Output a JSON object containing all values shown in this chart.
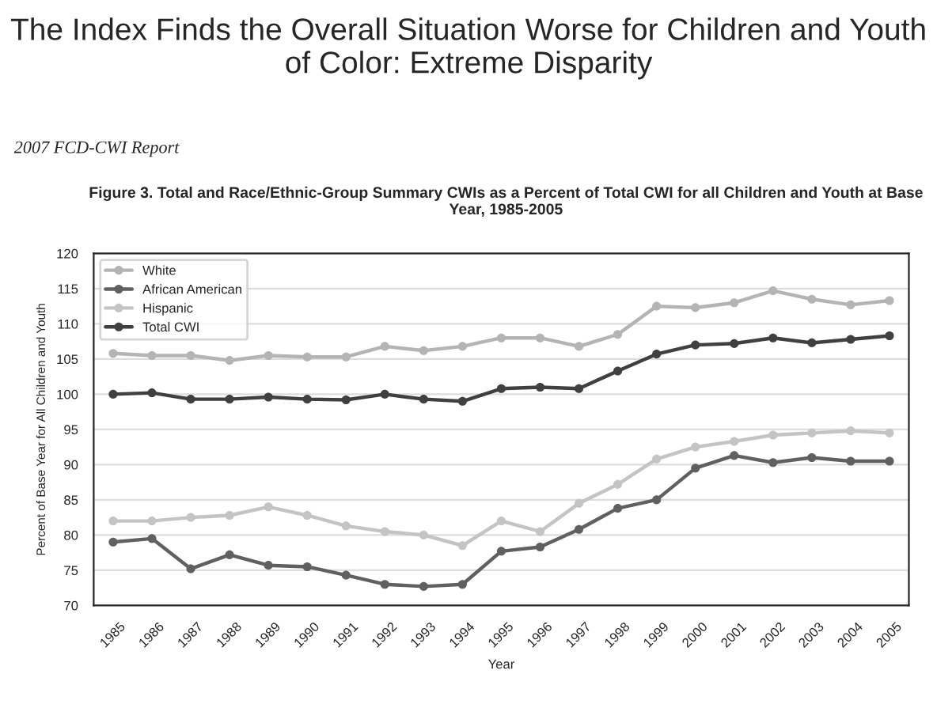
{
  "chart_data": {
    "type": "line",
    "title": "The Index Finds the Overall Situation Worse for Children and Youth of Color: Extreme Disparity",
    "subtitle": "Figure 3. Total and Race/Ethnic-Group Summary CWIs as a Percent of Total CWI for all Children and Youth at Base Year, 1985-2005",
    "annotations": [
      "2007 FCD-CWI Report"
    ],
    "xlabel": "Year",
    "ylabel": "Percent of Base Year for All Children and Youth",
    "categories": [
      "1985",
      "1986",
      "1987",
      "1988",
      "1989",
      "1990",
      "1991",
      "1992",
      "1993",
      "1994",
      "1995",
      "1996",
      "1997",
      "1998",
      "1999",
      "2000",
      "2001",
      "2002",
      "2003",
      "2004",
      "2005"
    ],
    "series": [
      {
        "name": "White",
        "color": "#b4b4b4",
        "values": [
          105.8,
          105.5,
          105.5,
          104.8,
          105.5,
          105.3,
          105.3,
          106.8,
          106.2,
          106.8,
          108,
          108,
          106.8,
          108.5,
          112.5,
          112.3,
          113,
          114.7,
          113.5,
          112.7,
          113.3
        ]
      },
      {
        "name": "African American",
        "color": "#606060",
        "values": [
          79,
          79.5,
          75.2,
          77.2,
          75.7,
          75.5,
          74.3,
          73,
          72.7,
          73,
          77.7,
          78.3,
          80.8,
          83.8,
          85,
          89.5,
          91.3,
          90.3,
          91,
          90.5,
          90.5
        ]
      },
      {
        "name": "Hispanic",
        "color": "#c4c4c4",
        "values": [
          82,
          82,
          82.5,
          82.8,
          84,
          82.8,
          81.3,
          80.5,
          80,
          78.5,
          82,
          80.5,
          84.5,
          87.2,
          90.8,
          92.5,
          93.3,
          94.2,
          94.5,
          94.8,
          94.5
        ]
      },
      {
        "name": "Total CWI",
        "color": "#404040",
        "values": [
          100,
          100.2,
          99.3,
          99.3,
          99.6,
          99.3,
          99.2,
          100,
          99.3,
          99,
          100.8,
          101,
          100.8,
          103.3,
          105.7,
          107,
          107.2,
          108,
          107.3,
          107.8,
          108.3
        ]
      }
    ],
    "ylim": [
      70,
      120
    ],
    "yticks": [
      70,
      75,
      80,
      85,
      90,
      95,
      100,
      105,
      110,
      115,
      120
    ],
    "grid": "y",
    "legend": "top left",
    "marker": "circle",
    "line_style": "solid"
  }
}
